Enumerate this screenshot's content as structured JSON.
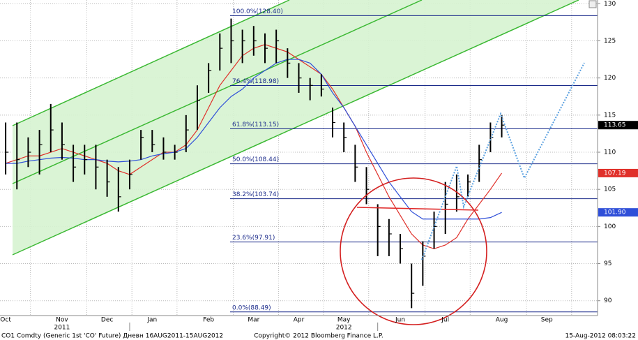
{
  "chart_data": {
    "type": "ohlc",
    "categories": [
      "Oct",
      null,
      null,
      null,
      null,
      "Nov",
      null,
      null,
      null,
      "Dec",
      null,
      null,
      null,
      "Jan",
      null,
      null,
      null,
      null,
      "Feb",
      null,
      null,
      null,
      "Mar",
      null,
      null,
      null,
      "Apr",
      null,
      null,
      null,
      "May",
      null,
      null,
      null,
      null,
      "Jun",
      null,
      null,
      null,
      "Jul",
      null,
      null,
      null,
      null,
      "Aug",
      null,
      null,
      null,
      "Sep",
      null,
      null,
      null,
      null
    ],
    "year_labels": [
      "2011",
      "2012"
    ],
    "high": [
      114,
      114,
      112,
      113,
      116.5,
      114,
      111,
      111,
      111,
      109,
      108,
      109,
      113,
      113,
      112,
      111,
      115,
      119,
      122,
      126,
      128,
      126.5,
      127,
      126,
      126.5,
      124,
      122,
      120,
      120.5,
      116,
      114,
      111,
      108,
      103,
      101,
      99,
      95,
      98,
      102,
      106,
      107,
      107,
      111,
      114,
      115,
      null,
      null,
      null,
      null,
      null,
      null,
      null,
      null
    ],
    "low": [
      107,
      105,
      108,
      107,
      110,
      109,
      106,
      107,
      105,
      104,
      102,
      105,
      109,
      110,
      109,
      109,
      110,
      113,
      118,
      121,
      122,
      122,
      123,
      122,
      122,
      120,
      118,
      117,
      117.5,
      112,
      110,
      106,
      103,
      96,
      96,
      95,
      89,
      92,
      97,
      99,
      102,
      104,
      106,
      110,
      112,
      null,
      null,
      null,
      null,
      null,
      null,
      null,
      null
    ],
    "close": [
      110,
      109,
      110,
      111,
      113,
      111,
      108,
      109,
      108,
      106,
      104,
      107,
      112,
      111,
      110,
      110,
      113,
      117,
      121,
      124,
      125,
      125,
      125,
      124,
      125,
      122,
      120,
      119,
      118.5,
      114,
      112,
      108,
      105,
      100,
      99,
      97,
      91,
      96,
      100,
      103,
      104,
      106,
      109,
      112,
      113.65,
      null,
      null,
      null,
      null,
      null,
      null,
      null,
      null
    ],
    "color": "#000000",
    "series": [
      {
        "color": "#e0302a",
        "values": [
          108.5,
          109,
          109.5,
          109.5,
          110,
          110.5,
          110,
          109.5,
          109,
          108.5,
          107.5,
          107,
          108,
          109,
          110,
          110,
          111,
          113,
          116,
          119,
          121,
          123,
          124,
          124.5,
          124,
          123.5,
          122.5,
          121.5,
          120.5,
          118.5,
          116,
          113.5,
          110,
          107,
          104,
          101.5,
          99,
          97.5,
          97,
          97.5,
          98.5,
          101,
          103,
          105,
          107.19,
          null,
          null,
          null,
          null,
          null,
          null,
          null,
          null
        ]
      },
      {
        "color": "#2f4fd8",
        "values": [
          108.5,
          108.5,
          108.8,
          109,
          109.2,
          109.3,
          109.2,
          109,
          109,
          108.8,
          108.7,
          108.8,
          109,
          109.5,
          109.8,
          110,
          110.5,
          112,
          114,
          116,
          117.5,
          118.5,
          120,
          121,
          122,
          122.5,
          122.5,
          122,
          120.5,
          118,
          116,
          113.5,
          111,
          108.5,
          106,
          104,
          102,
          101,
          101,
          101,
          101,
          101,
          101,
          101.2,
          101.9,
          null,
          null,
          null,
          null,
          null,
          null,
          null,
          null
        ],
        "value_labels": [
          null,
          null,
          null,
          null,
          null,
          null,
          null,
          null,
          null,
          null,
          null,
          null,
          null,
          null,
          null,
          null,
          null,
          null,
          null,
          null,
          null,
          null,
          null,
          null,
          null,
          null,
          null,
          null,
          null,
          null,
          null,
          null,
          null,
          null,
          null,
          null,
          null,
          null,
          null,
          null,
          null,
          null,
          null,
          null,
          "101.90",
          null,
          null,
          null,
          null,
          null,
          null,
          null,
          null
        ]
      }
    ],
    "fib_levels": [
      {
        "value": 128.4,
        "label": "100.0%(128.40)"
      },
      {
        "value": 118.98,
        "label": "76.4%(118.98)"
      },
      {
        "value": 113.15,
        "label": "61.8%(113.15)"
      },
      {
        "value": 108.44,
        "label": "50.0%(108.44)"
      },
      {
        "value": 103.74,
        "label": "38.2%(103.74)"
      },
      {
        "value": 97.91,
        "label": "23.6%(97.91)"
      },
      {
        "value": 88.49,
        "label": "0.0%(88.49)"
      }
    ],
    "ylim": [
      88,
      130.5
    ],
    "yticks": [
      90,
      95,
      100,
      105,
      110,
      115,
      120,
      125,
      130
    ],
    "grid": true,
    "footer_left": "CO1 Comdty (Generic 1st 'CO' Future) Дневн 16AUG2011-15AUG2012",
    "footer_center": "Copyright© 2012 Bloomberg Finance L.P.",
    "footer_right": "15-Aug-2012 08:03:22"
  }
}
